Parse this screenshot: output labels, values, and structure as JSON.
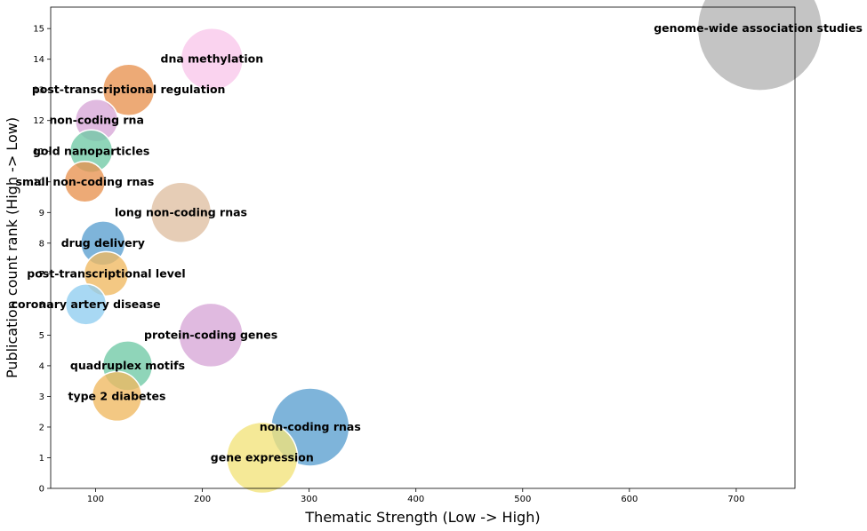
{
  "chart_data": {
    "type": "scatter",
    "title": "",
    "xlabel": "Thematic Strength (Low -> High)",
    "ylabel": "Publication count rank (High -> Low)",
    "xlim": [
      58,
      755
    ],
    "ylim": [
      0,
      15.7
    ],
    "xticks": [
      100,
      200,
      300,
      400,
      500,
      600,
      700
    ],
    "yticks": [
      0,
      1,
      2,
      3,
      4,
      5,
      6,
      7,
      8,
      9,
      10,
      11,
      12,
      13,
      14,
      15
    ],
    "grid": false,
    "legend": "none",
    "points": [
      {
        "label": "genome-wide association studies",
        "x": 722,
        "y": 15,
        "size": 70,
        "color": "#b3b3b3"
      },
      {
        "label": "dna methylation",
        "x": 209,
        "y": 14,
        "size": 35,
        "color": "#f9c6ea"
      },
      {
        "label": "post-transcriptional regulation",
        "x": 131,
        "y": 13,
        "size": 29,
        "color": "#e8924f"
      },
      {
        "label": "non-coding rna",
        "x": 101,
        "y": 12,
        "size": 24,
        "color": "#d7a7d7"
      },
      {
        "label": "gold nanoparticles",
        "x": 96,
        "y": 11,
        "size": 24,
        "color": "#6fc9a5"
      },
      {
        "label": "small non-coding rnas",
        "x": 90,
        "y": 10,
        "size": 23,
        "color": "#e8924f"
      },
      {
        "label": "long non-coding rnas",
        "x": 180,
        "y": 9,
        "size": 34,
        "color": "#dfbfa1"
      },
      {
        "label": "drug delivery",
        "x": 107,
        "y": 8,
        "size": 25,
        "color": "#5a9fd0"
      },
      {
        "label": "post-transcriptional level",
        "x": 110,
        "y": 7,
        "size": 25,
        "color": "#f0b860"
      },
      {
        "label": "coronary artery disease",
        "x": 91,
        "y": 6,
        "size": 23,
        "color": "#90cdf0"
      },
      {
        "label": "protein-coding genes",
        "x": 208,
        "y": 5,
        "size": 36,
        "color": "#d7a7d7"
      },
      {
        "label": "quadruplex motifs",
        "x": 130,
        "y": 4,
        "size": 28,
        "color": "#6fc9a5"
      },
      {
        "label": "type 2 diabetes",
        "x": 120,
        "y": 3,
        "size": 28,
        "color": "#f0b860"
      },
      {
        "label": "non-coding rnas",
        "x": 301,
        "y": 2,
        "size": 44,
        "color": "#5a9fd0"
      },
      {
        "label": "gene expression",
        "x": 256,
        "y": 1,
        "size": 40,
        "color": "#f2e37a"
      }
    ]
  }
}
